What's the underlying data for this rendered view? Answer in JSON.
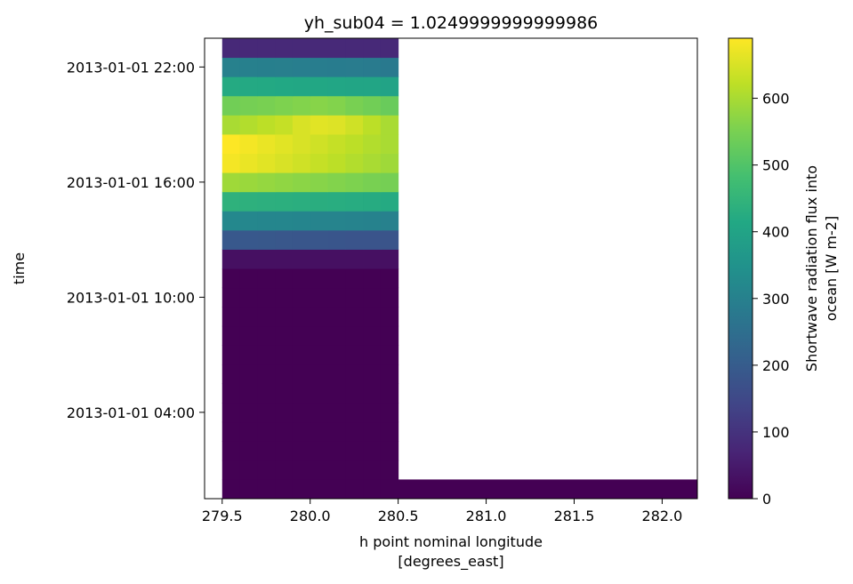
{
  "chart_data": {
    "type": "heatmap",
    "title": "yh_sub04 = 1.0249999999999986",
    "xlabel_line1": "h point nominal longitude",
    "xlabel_line2": "[degrees_east]",
    "ylabel": "time",
    "colorbar_label_line1": "Shortwave radiation flux into",
    "colorbar_label_line2": "ocean [W m-2]",
    "colormap": "viridis",
    "xlim": [
      279.4,
      282.2
    ],
    "ylim_hours": [
      -0.5,
      23.5
    ],
    "clim": [
      0,
      690
    ],
    "x_ticks": [
      279.5,
      280.0,
      280.5,
      281.0,
      281.5,
      282.0
    ],
    "x_tick_labels": [
      "279.5",
      "280.0",
      "280.5",
      "281.0",
      "281.5",
      "282.0"
    ],
    "y_ticks_hours": [
      4,
      10,
      16,
      22
    ],
    "y_tick_labels": [
      "2013-01-01 04:00",
      "2013-01-01 10:00",
      "2013-01-01 16:00",
      "2013-01-01 22:00"
    ],
    "cbar_ticks": [
      0,
      100,
      200,
      300,
      400,
      500,
      600
    ],
    "cbar_tick_labels": [
      "0",
      "100",
      "200",
      "300",
      "400",
      "500",
      "600"
    ],
    "x_cells": [
      279.55,
      279.65,
      279.75,
      279.85,
      279.95,
      280.05,
      280.15,
      280.25,
      280.35,
      280.45
    ],
    "hours": [
      0,
      1,
      2,
      3,
      4,
      5,
      6,
      7,
      8,
      9,
      10,
      11,
      12,
      13,
      14,
      15,
      16,
      17,
      18,
      19,
      20,
      21,
      22,
      23
    ],
    "values": [
      [
        0,
        0,
        0,
        0,
        0,
        0,
        0,
        0,
        0,
        0
      ],
      [
        0,
        0,
        0,
        0,
        0,
        0,
        0,
        0,
        0,
        0
      ],
      [
        0,
        0,
        0,
        0,
        0,
        0,
        0,
        0,
        0,
        0
      ],
      [
        0,
        0,
        0,
        0,
        0,
        0,
        0,
        0,
        0,
        0
      ],
      [
        0,
        0,
        0,
        0,
        0,
        0,
        0,
        0,
        0,
        0
      ],
      [
        0,
        0,
        0,
        0,
        0,
        0,
        0,
        0,
        0,
        0
      ],
      [
        0,
        0,
        0,
        0,
        0,
        0,
        0,
        0,
        0,
        0
      ],
      [
        0,
        0,
        0,
        0,
        0,
        0,
        0,
        0,
        0,
        0
      ],
      [
        0,
        0,
        0,
        0,
        0,
        0,
        0,
        0,
        0,
        0
      ],
      [
        0,
        0,
        0,
        0,
        0,
        0,
        0,
        0,
        0,
        0
      ],
      [
        0,
        0,
        0,
        0,
        0,
        0,
        0,
        0,
        0,
        0
      ],
      [
        0,
        0,
        0,
        0,
        0,
        0,
        0,
        0,
        0,
        0
      ],
      [
        30,
        30,
        30,
        30,
        30,
        30,
        30,
        30,
        30,
        30
      ],
      [
        190,
        190,
        188,
        186,
        184,
        184,
        182,
        180,
        180,
        178
      ],
      [
        320,
        318,
        316,
        314,
        312,
        310,
        308,
        306,
        304,
        302
      ],
      [
        440,
        438,
        436,
        434,
        432,
        430,
        428,
        426,
        424,
        420
      ],
      [
        590,
        585,
        580,
        575,
        570,
        565,
        560,
        555,
        550,
        545
      ],
      [
        680,
        670,
        660,
        650,
        640,
        630,
        620,
        610,
        600,
        590
      ],
      [
        690,
        680,
        670,
        660,
        650,
        640,
        630,
        620,
        610,
        600
      ],
      [
        600,
        610,
        620,
        630,
        650,
        660,
        655,
        640,
        620,
        600
      ],
      [
        540,
        545,
        550,
        555,
        560,
        565,
        560,
        550,
        540,
        530
      ],
      [
        420,
        418,
        416,
        414,
        412,
        410,
        408,
        406,
        404,
        400
      ],
      [
        300,
        298,
        296,
        294,
        292,
        290,
        288,
        286,
        284,
        280
      ],
      [
        80,
        80,
        80,
        80,
        80,
        80,
        80,
        80,
        80,
        80
      ]
    ],
    "extra_cells": [
      {
        "x_start": 280.5,
        "x_end": 282.2,
        "hour": 0,
        "value": 0
      }
    ]
  }
}
